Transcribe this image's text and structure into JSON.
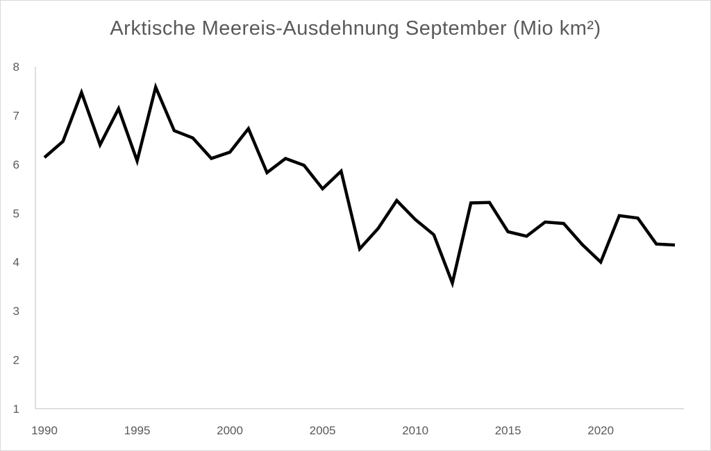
{
  "chart_data": {
    "type": "line",
    "title": "Arktische Meereis-Ausdehnung September (Mio km²)",
    "xlabel": "",
    "ylabel": "",
    "xlim": [
      1990,
      2024
    ],
    "ylim": [
      1,
      8
    ],
    "x_ticks": [
      1990,
      1995,
      2000,
      2005,
      2010,
      2015,
      2020
    ],
    "y_ticks": [
      1,
      2,
      3,
      4,
      5,
      6,
      7,
      8
    ],
    "grid": false,
    "legend": "none",
    "series": [
      {
        "color": "#000000",
        "x": [
          1990,
          1991,
          1992,
          1993,
          1994,
          1995,
          1996,
          1997,
          1998,
          1999,
          2000,
          2001,
          2002,
          2003,
          2004,
          2005,
          2006,
          2007,
          2008,
          2009,
          2010,
          2011,
          2012,
          2013,
          2014,
          2015,
          2016,
          2017,
          2018,
          2019,
          2020,
          2021,
          2022,
          2023,
          2024
        ],
        "y": [
          6.14,
          6.47,
          7.47,
          6.4,
          7.14,
          6.07,
          7.58,
          6.69,
          6.54,
          6.12,
          6.25,
          6.73,
          5.83,
          6.12,
          5.98,
          5.5,
          5.86,
          4.27,
          4.69,
          5.26,
          4.87,
          4.56,
          3.57,
          5.21,
          5.22,
          4.62,
          4.53,
          4.82,
          4.79,
          4.36,
          4.0,
          4.95,
          4.9,
          4.37,
          4.35
        ]
      }
    ]
  }
}
